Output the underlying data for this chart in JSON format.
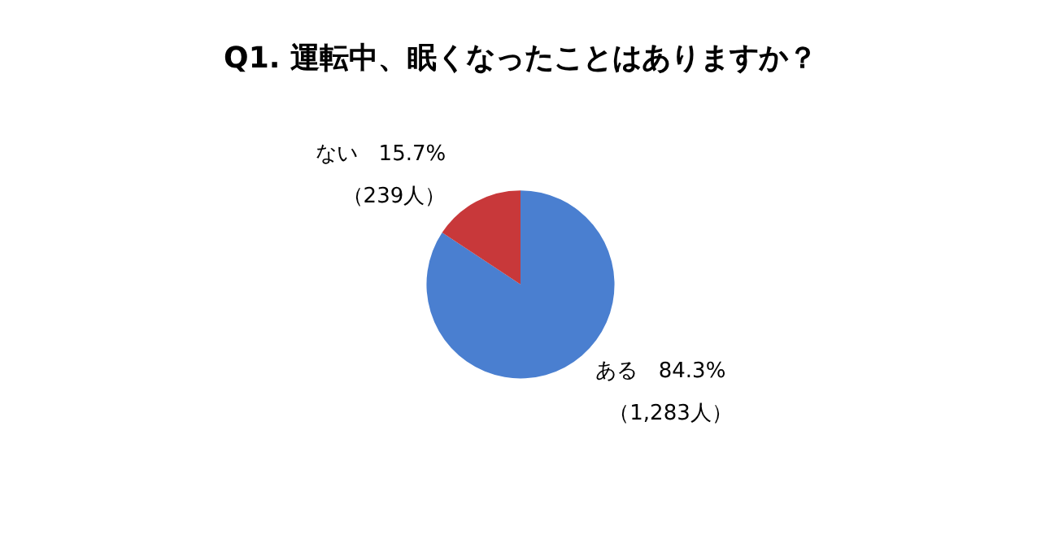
{
  "chart_data": {
    "type": "pie",
    "title": "Q1. 運転中、眠くなったことはありますか？",
    "categories": [
      "ある",
      "ない"
    ],
    "values": [
      84.3,
      15.7
    ],
    "value_labels": [
      "84.3%\n（1,283人）",
      "15.7%\n（239人）"
    ],
    "colors": [
      "#4a7fd0",
      "#c8383a"
    ]
  }
}
